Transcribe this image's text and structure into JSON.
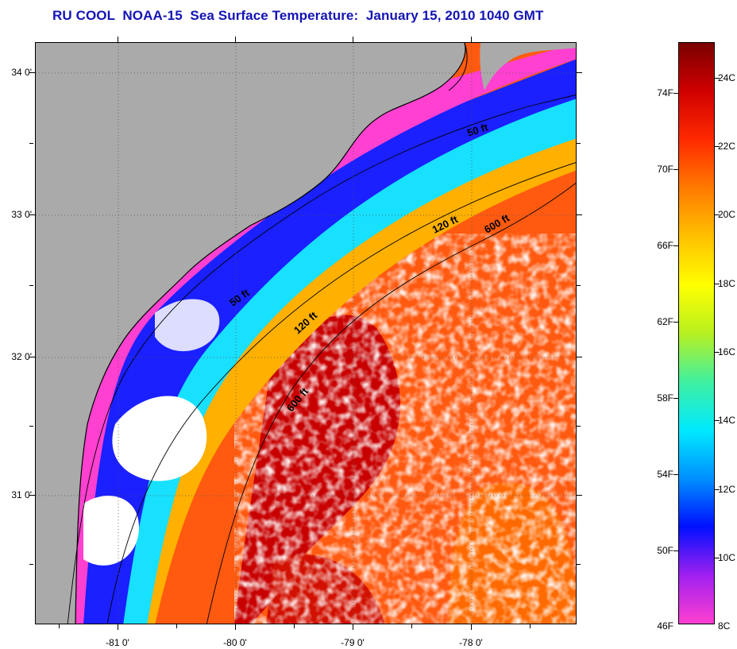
{
  "title": "RU COOL  NOAA-15  Sea Surface Temperature:  January 15, 2010 1040 GMT",
  "map": {
    "lat_ticks": [
      "34 0'",
      "33 0'",
      "32 0'",
      "31 0'"
    ],
    "lon_ticks": [
      "-81 0'",
      "-80 0'",
      "-79 0'",
      "-78 0'"
    ],
    "isobaths": [
      "50 ft",
      "120 ft",
      "600 ft",
      "50 ft",
      "120 ft",
      "600 ft"
    ],
    "colors": {
      "land": "#aaaaaa",
      "cloud": "#ffffff",
      "coast": "#000000"
    }
  },
  "colorbar": {
    "fahrenheit_labels": [
      "74F",
      "70F",
      "66F",
      "62F",
      "58F",
      "54F",
      "50F",
      "46F"
    ],
    "celsius_labels": [
      "24C",
      "22C",
      "20C",
      "18C",
      "16C",
      "14C",
      "12C",
      "10C",
      "8C"
    ],
    "range_celsius": [
      8,
      25.2
    ],
    "stops": [
      "#ff3fd0",
      "#a020f0",
      "#0010ff",
      "#0090ff",
      "#00eaff",
      "#40f0a0",
      "#b8f020",
      "#ffff00",
      "#ffc000",
      "#ff7a00",
      "#ff2a00",
      "#d00000",
      "#7a0000"
    ]
  }
}
